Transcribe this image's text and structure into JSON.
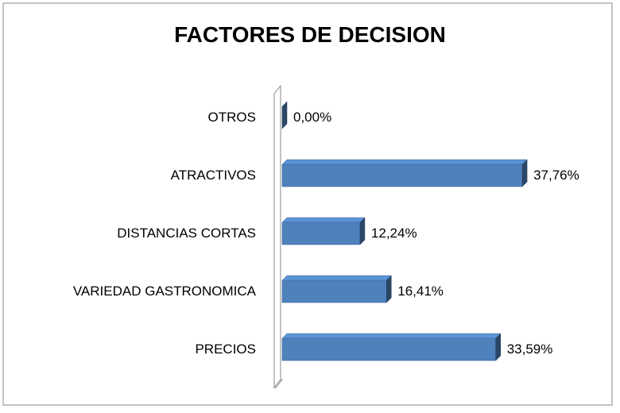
{
  "chart_data": {
    "type": "bar3d-horizontal",
    "title": "FACTORES DE DECISION",
    "categories": [
      "PRECIOS",
      "VARIEDAD GASTRONOMICA",
      "DISTANCIAS CORTAS",
      "ATRACTIVOS",
      "OTROS"
    ],
    "values": [
      33.59,
      16.41,
      12.24,
      37.76,
      0
    ],
    "value_labels": [
      "33,59%",
      "16,41%",
      "12,24%",
      "37,76%",
      "0,00%"
    ],
    "color": "#4f81bd"
  }
}
